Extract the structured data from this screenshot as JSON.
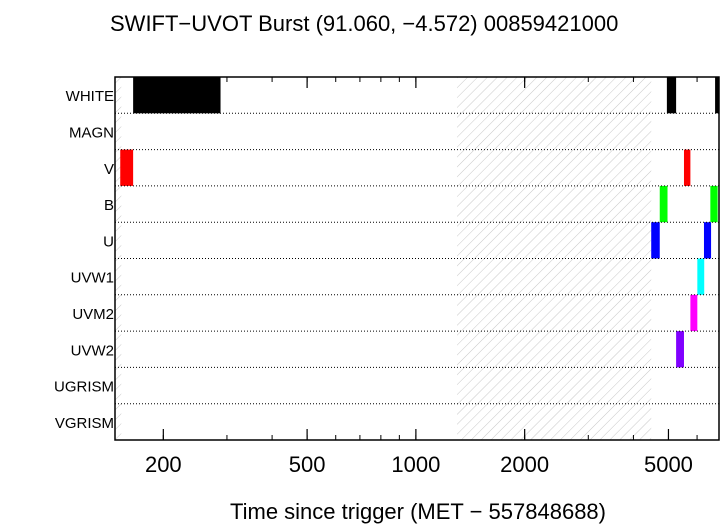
{
  "chart_data": {
    "type": "timeline",
    "title": "SWIFT−UVOT Burst (91.060, −4.572) 00859421000",
    "xlabel": "Time since trigger (MET − 557848688)",
    "ylabel": "",
    "x_scale": "log",
    "xlim": [
      147,
      6900
    ],
    "x_ticks": [
      200,
      500,
      1000,
      2000,
      5000
    ],
    "x_tick_labels": [
      "200",
      "500",
      "1000",
      "2000",
      "5000"
    ],
    "filters": [
      "WHITE",
      "MAGN",
      "V",
      "B",
      "U",
      "UVW1",
      "UVM2",
      "UVW2",
      "UGRISM",
      "VGRISM"
    ],
    "hatched_ranges": [
      [
        147,
        153
      ],
      [
        1300,
        4480
      ]
    ],
    "exposures": [
      {
        "filter": "WHITE",
        "start": 165,
        "end": 288,
        "color": "#000000"
      },
      {
        "filter": "WHITE",
        "start": 4950,
        "end": 5250,
        "color": "#000000"
      },
      {
        "filter": "WHITE",
        "start": 6730,
        "end": 6900,
        "color": "#000000"
      },
      {
        "filter": "V",
        "start": 152,
        "end": 165,
        "color": "#ff0000"
      },
      {
        "filter": "V",
        "start": 5520,
        "end": 5750,
        "color": "#ff0000"
      },
      {
        "filter": "B",
        "start": 4730,
        "end": 4970,
        "color": "#00ff00"
      },
      {
        "filter": "B",
        "start": 6530,
        "end": 6840,
        "color": "#00ff00"
      },
      {
        "filter": "U",
        "start": 4480,
        "end": 4730,
        "color": "#0000ff"
      },
      {
        "filter": "U",
        "start": 6270,
        "end": 6560,
        "color": "#0000ff"
      },
      {
        "filter": "UVW1",
        "start": 6010,
        "end": 6280,
        "color": "#00ffff"
      },
      {
        "filter": "UVM2",
        "start": 5750,
        "end": 6010,
        "color": "#ff00ff"
      },
      {
        "filter": "UVW2",
        "start": 5250,
        "end": 5520,
        "color": "#8000ff"
      }
    ]
  }
}
